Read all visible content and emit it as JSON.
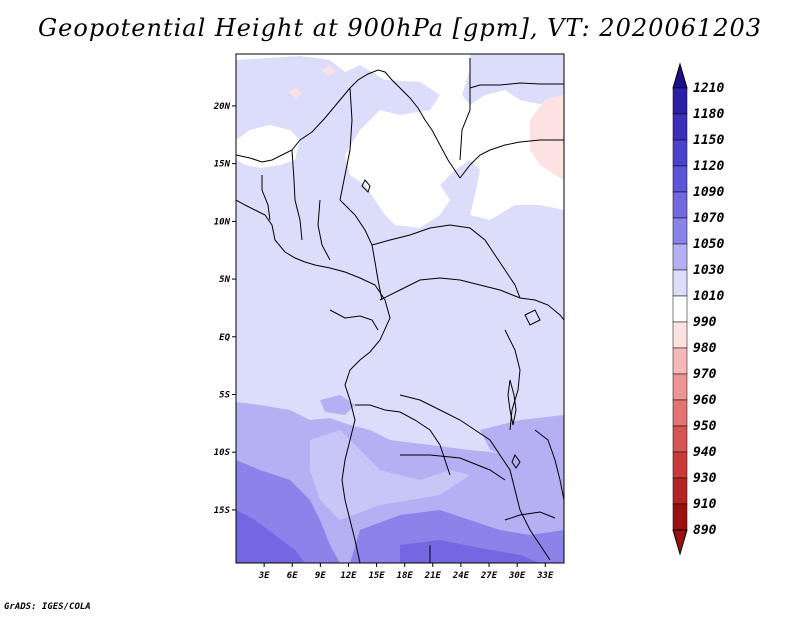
{
  "title": "Geopotential Height at 900hPa [gpm], VT: 2020061203",
  "credit": "GrADS: IGES/COLA",
  "map": {
    "lon_range": [
      0,
      35
    ],
    "lat_range": [
      -19.6,
      24.5
    ],
    "x_ticks": [
      "3E",
      "6E",
      "9E",
      "12E",
      "15E",
      "18E",
      "21E",
      "24E",
      "27E",
      "30E",
      "33E"
    ],
    "x_tick_values": [
      3,
      6,
      9,
      12,
      15,
      18,
      21,
      24,
      27,
      30,
      33
    ],
    "y_ticks": [
      "20N",
      "15N",
      "10N",
      "5N",
      "EQ",
      "5S",
      "10S",
      "15S"
    ],
    "y_tick_values": [
      20,
      15,
      10,
      5,
      0,
      -5,
      -10,
      -15
    ]
  },
  "colorbar": {
    "levels": [
      "1210",
      "1180",
      "1150",
      "1120",
      "1090",
      "1070",
      "1050",
      "1030",
      "1010",
      "990",
      "980",
      "970",
      "960",
      "950",
      "940",
      "930",
      "910",
      "890"
    ],
    "colors": [
      "#1a0f8c",
      "#2a1fa6",
      "#3a30bb",
      "#4b42cc",
      "#5d55d8",
      "#7168e2",
      "#8a83ea",
      "#b4b0f3",
      "#dcdcfb",
      "#ffffff",
      "#fde2e2",
      "#f7b8b8",
      "#ee9494",
      "#e27474",
      "#d65656",
      "#c83a3a",
      "#b52424",
      "#9a1010"
    ]
  }
}
